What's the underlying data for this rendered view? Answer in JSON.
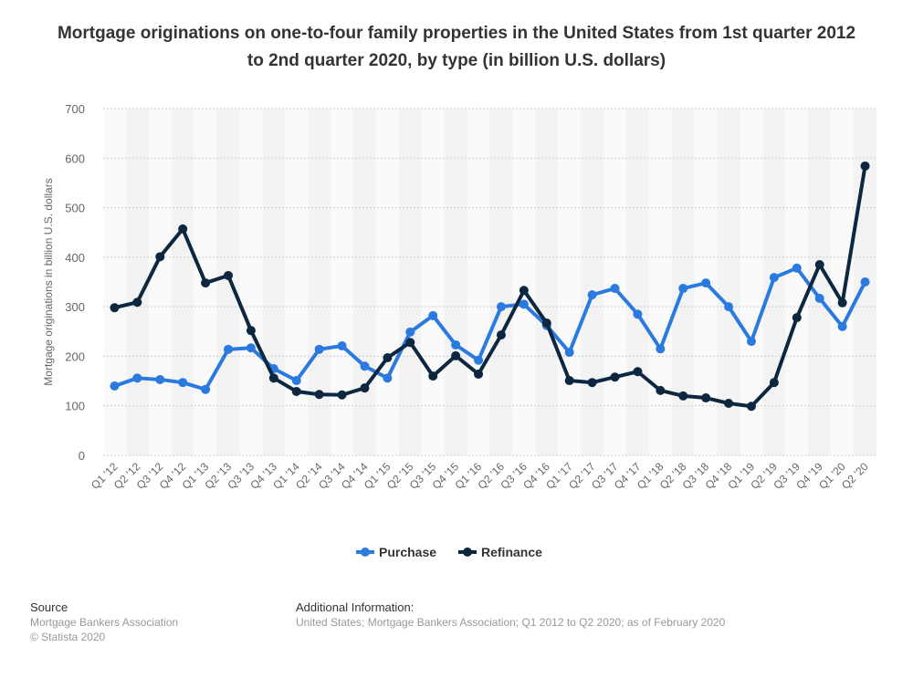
{
  "chart_data": {
    "type": "line",
    "title": "Mortgage originations on one-to-four family properties in the United States from 1st quarter 2012 to 2nd quarter 2020, by type (in billion U.S. dollars)",
    "xlabel": "",
    "ylabel": "Mortgage originations in billion U.S. dollars",
    "ylim": [
      0,
      700
    ],
    "yticks": [
      0,
      100,
      200,
      300,
      400,
      500,
      600,
      700
    ],
    "grid": true,
    "legend_position": "bottom",
    "categories": [
      "Q1 '12",
      "Q2 '12",
      "Q3 '12",
      "Q4 '12",
      "Q1 '13",
      "Q2 '13",
      "Q3 '13",
      "Q4 '13",
      "Q1 '14",
      "Q2 '14",
      "Q3 '14",
      "Q4 '14",
      "Q1 '15",
      "Q2 '15",
      "Q3 '15",
      "Q4 '15",
      "Q1 '16",
      "Q2 '16",
      "Q3 '16",
      "Q4 '16",
      "Q1 '17",
      "Q2 '17",
      "Q3 '17",
      "Q4 '17",
      "Q1 '18",
      "Q2 '18",
      "Q3 '18",
      "Q4 '18",
      "Q1 '19",
      "Q2 '19",
      "Q3 '19",
      "Q4 '19",
      "Q1 '20",
      "Q2 '20"
    ],
    "series": [
      {
        "name": "Purchase",
        "color": "#2b7ae0",
        "values": [
          140,
          156,
          153,
          147,
          133,
          214,
          217,
          175,
          151,
          214,
          221,
          180,
          156,
          249,
          282,
          223,
          192,
          300,
          305,
          262,
          208,
          324,
          337,
          285,
          215,
          337,
          348,
          300,
          230,
          359,
          378,
          317,
          260,
          350
        ]
      },
      {
        "name": "Refinance",
        "color": "#0e2741",
        "values": [
          298,
          309,
          401,
          457,
          348,
          363,
          252,
          156,
          129,
          123,
          122,
          136,
          197,
          228,
          160,
          201,
          164,
          243,
          333,
          267,
          151,
          147,
          158,
          169,
          131,
          120,
          116,
          105,
          99,
          147,
          278,
          385,
          308,
          584
        ]
      }
    ]
  },
  "footer": {
    "source_heading": "Source",
    "source_lines": [
      "Mortgage Bankers Association",
      "© Statista 2020"
    ],
    "info_heading": "Additional Information:",
    "info_text": "United States; Mortgage Bankers Association; Q1 2012 to Q2 2020; as of February 2020"
  }
}
